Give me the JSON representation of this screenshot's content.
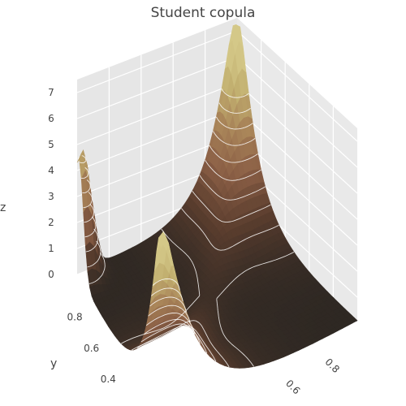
{
  "chart_data": {
    "type": "surface3d",
    "title": "Student copula",
    "xlabel": "",
    "ylabel": "y",
    "zlabel": "z",
    "x_ticks": [
      "0.6",
      "0.8"
    ],
    "y_ticks": [
      "0.4",
      "0.6",
      "0.8"
    ],
    "z_ticks": [
      "0",
      "1",
      "2",
      "3",
      "4",
      "5",
      "6",
      "7"
    ],
    "xlim": [
      0,
      1
    ],
    "ylim": [
      0,
      1
    ],
    "zlim": [
      0,
      7.5
    ],
    "peaks": [
      {
        "x": 0.02,
        "y": 0.98,
        "z": 4.8
      },
      {
        "x": 0.98,
        "y": 0.98,
        "z": 7.2
      },
      {
        "x": 0.02,
        "y": 0.02,
        "z": 7.2
      }
    ],
    "contour_levels": [
      0.5,
      1.0,
      1.5,
      2.0,
      2.5,
      3.0,
      3.5,
      4.0,
      4.5,
      5.0
    ],
    "colorscale": [
      "#2a2622",
      "#5a3d2e",
      "#8a5e45",
      "#a88358",
      "#c2b070",
      "#d4c888"
    ],
    "grid": true
  }
}
